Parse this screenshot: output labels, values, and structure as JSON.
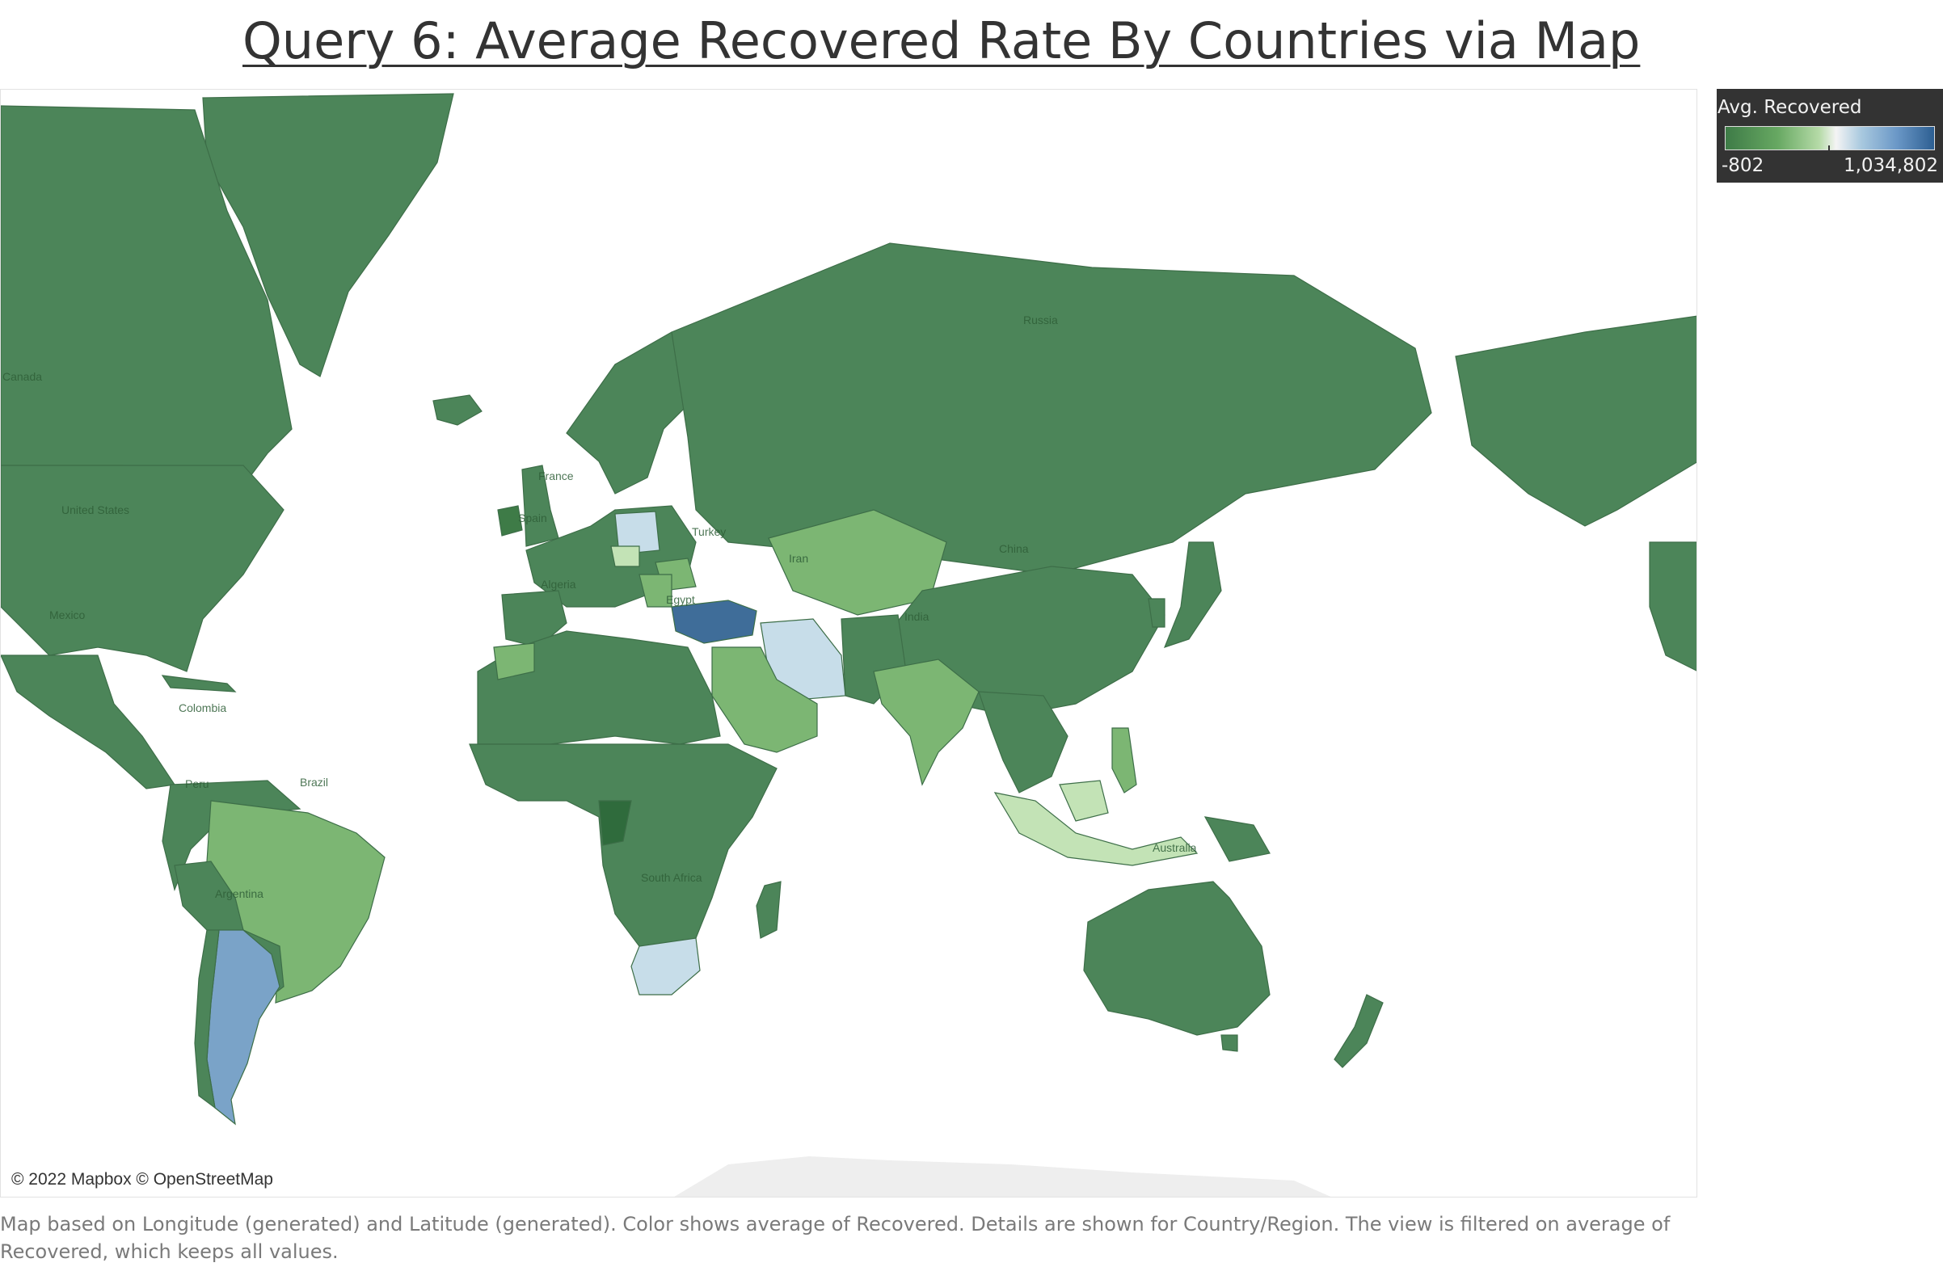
{
  "title": "Query 6: Average Recovered Rate By Countries via Map",
  "legend": {
    "title": "Avg. Recovered",
    "min_label": "-802",
    "max_label": "1,034,802",
    "min_value": -802,
    "max_value": 1034802,
    "colors": {
      "low": "#3e7b47",
      "mid": "#f4f4f4",
      "high": "#2d5f92"
    }
  },
  "map": {
    "attribution": "© 2022 Mapbox © OpenStreetMap",
    "country_labels": [
      "Canada",
      "United States",
      "Mexico",
      "Colombia",
      "Brazil",
      "Peru",
      "Argentina",
      "France",
      "Spain",
      "Algeria",
      "Egypt",
      "Turkey",
      "Iran",
      "India",
      "China",
      "Russia",
      "South Africa",
      "Australia"
    ],
    "colors": {
      "land_default": "#4c8559",
      "land_light_green": "#7cb673",
      "land_pale_green": "#c3e3b6",
      "land_pale_blue": "#c7dde9",
      "land_mid_blue": "#7aa3c8",
      "land_dark_blue": "#3f6d99",
      "antarctica": "#eeeeee",
      "water": "#ffffff"
    }
  },
  "footnote": "Map based on Longitude (generated) and Latitude (generated).  Color shows average of Recovered.  Details are shown for Country/Region. The view is filtered on average of Recovered, which keeps all values."
}
